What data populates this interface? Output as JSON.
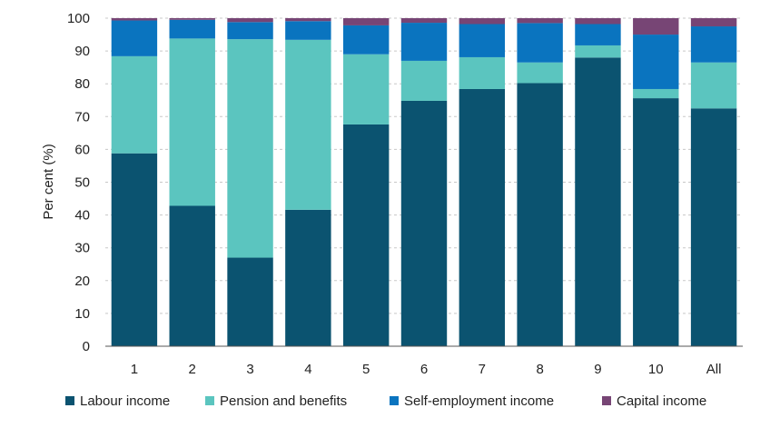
{
  "chart_data": {
    "type": "bar",
    "stacked": true,
    "categories": [
      "1",
      "2",
      "3",
      "4",
      "5",
      "6",
      "7",
      "8",
      "9",
      "10",
      "All"
    ],
    "series": [
      {
        "name": "Labour income",
        "color": "#0b5370",
        "values": [
          58.8,
          42.8,
          27.0,
          41.6,
          67.6,
          74.8,
          78.4,
          80.2,
          88.0,
          75.6,
          72.5
        ]
      },
      {
        "name": "Pension and benefits",
        "color": "#5bc5bf",
        "values": [
          29.6,
          51.0,
          66.6,
          51.8,
          21.4,
          12.2,
          9.7,
          6.3,
          3.7,
          2.8,
          14.0
        ]
      },
      {
        "name": "Self-employment income",
        "color": "#0a74bf",
        "values": [
          10.9,
          5.7,
          5.2,
          5.7,
          8.8,
          11.6,
          10.1,
          12.0,
          6.5,
          16.6,
          11.0
        ]
      },
      {
        "name": "Capital income",
        "color": "#774575",
        "values": [
          0.7,
          0.5,
          1.2,
          0.9,
          2.2,
          1.4,
          1.8,
          1.5,
          1.8,
          5.0,
          2.5
        ]
      }
    ],
    "ylabel": "Per cent (%)",
    "xlabel": "",
    "ylim": [
      0,
      100
    ],
    "yticks": [
      "0",
      "10",
      "20",
      "30",
      "40",
      "50",
      "60",
      "70",
      "80",
      "90",
      "100"
    ],
    "ytick_values": [
      0,
      10,
      20,
      30,
      40,
      50,
      60,
      70,
      80,
      90,
      100
    ],
    "grid": "horizontal dashed",
    "legend_position": "bottom"
  }
}
